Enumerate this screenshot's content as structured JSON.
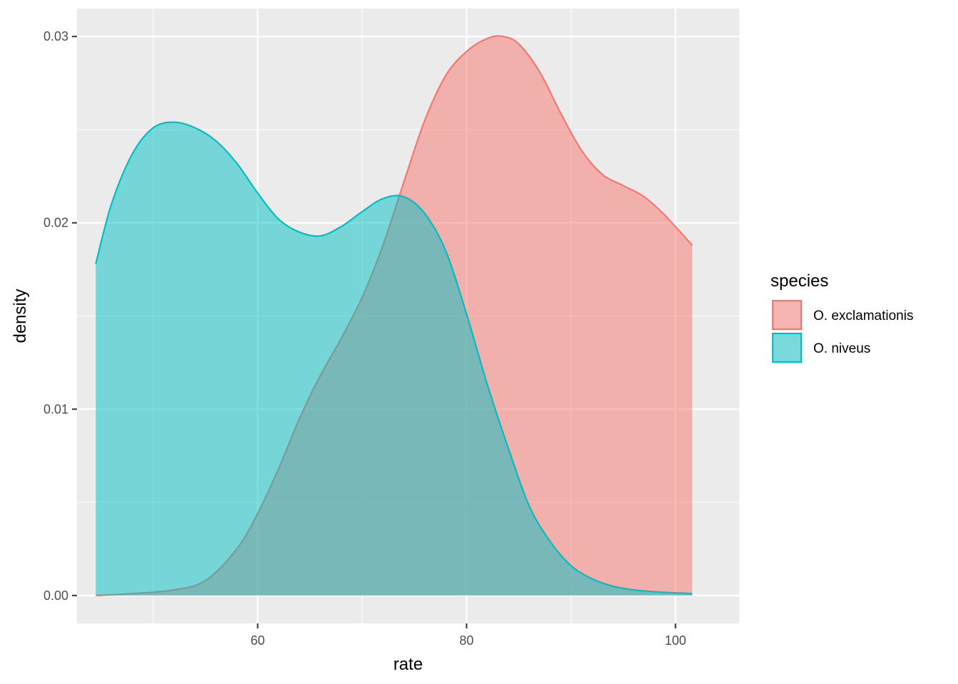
{
  "chart_data": {
    "type": "area",
    "subtype": "density",
    "xlabel": "rate",
    "ylabel": "density",
    "xlim": [
      42.7,
      106.1
    ],
    "ylim": [
      -0.0015,
      0.0315
    ],
    "x_ticks": [
      60,
      80,
      100
    ],
    "x_tick_labels": [
      "60",
      "80",
      "100"
    ],
    "x_minor_ticks": [
      50,
      70,
      90
    ],
    "y_ticks": [
      0.0,
      0.01,
      0.02,
      0.03
    ],
    "y_tick_labels": [
      "0.00",
      "0.01",
      "0.02",
      "0.03"
    ],
    "y_minor_ticks": [
      0.005,
      0.015,
      0.025
    ],
    "grid": true,
    "legend": {
      "title": "species",
      "position": "right"
    },
    "series": [
      {
        "name": "O. exclamationis",
        "color": "#F8766D",
        "x": [
          44.5,
          48,
          52,
          55,
          58,
          60,
          62,
          64,
          66,
          68,
          70,
          72,
          74,
          76,
          78,
          80,
          82,
          83.5,
          85,
          87,
          89,
          91,
          93,
          95,
          97,
          99,
          101.6
        ],
        "y": [
          0.0,
          0.0001,
          0.0003,
          0.0008,
          0.0025,
          0.0044,
          0.0068,
          0.0095,
          0.0118,
          0.0138,
          0.016,
          0.0188,
          0.0222,
          0.0255,
          0.0279,
          0.0292,
          0.0299,
          0.03,
          0.0296,
          0.0281,
          0.0259,
          0.0239,
          0.0226,
          0.022,
          0.0214,
          0.0204,
          0.0188
        ]
      },
      {
        "name": "O. niveus",
        "color": "#00BFC4",
        "x": [
          44.5,
          46,
          48,
          50,
          52,
          54,
          56,
          58,
          60,
          62,
          64,
          66,
          68,
          70,
          72,
          74,
          76,
          78,
          80,
          82,
          84,
          86,
          88,
          90,
          92,
          94,
          96,
          98,
          101.6
        ],
        "y": [
          0.0178,
          0.021,
          0.0237,
          0.0251,
          0.0254,
          0.0251,
          0.0244,
          0.0232,
          0.0216,
          0.0202,
          0.0195,
          0.0193,
          0.0198,
          0.0206,
          0.0213,
          0.0214,
          0.0205,
          0.0185,
          0.0151,
          0.0113,
          0.0079,
          0.0048,
          0.0029,
          0.0016,
          0.0009,
          0.0005,
          0.0003,
          0.0002,
          0.0001
        ]
      }
    ]
  }
}
